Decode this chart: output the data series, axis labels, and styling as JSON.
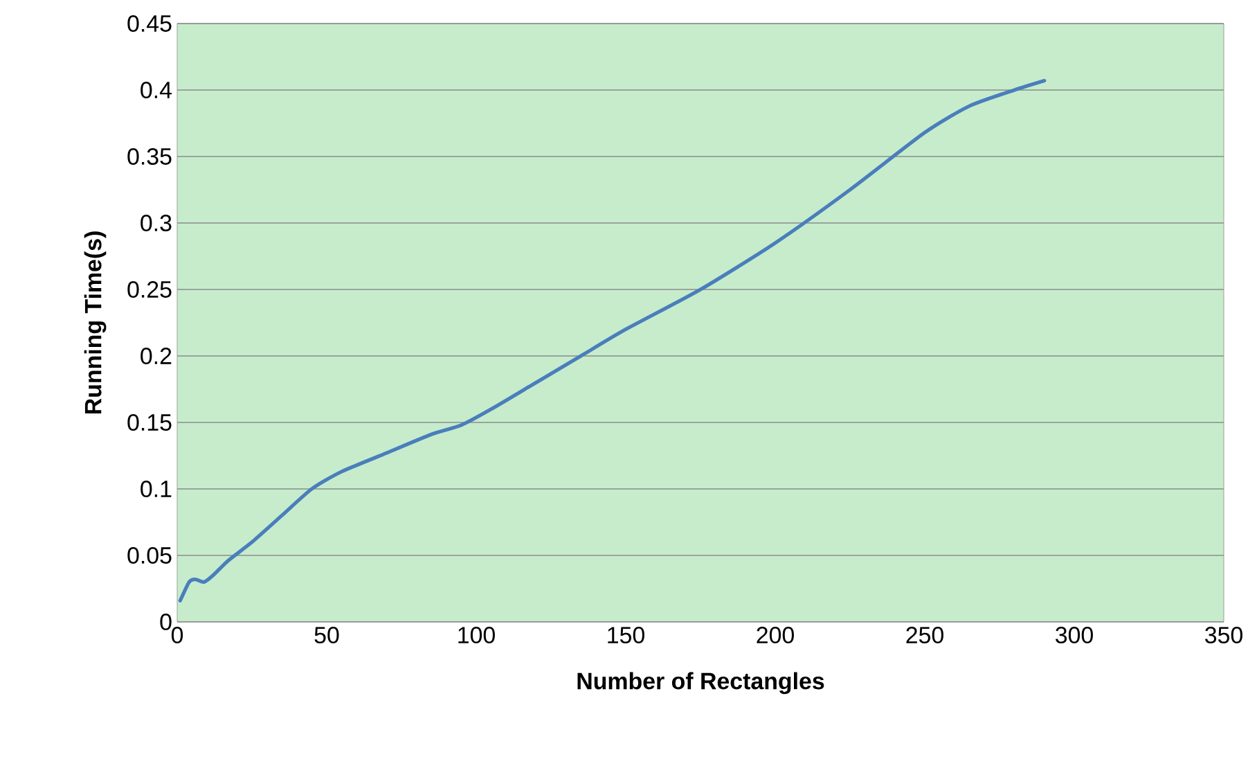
{
  "chart_data": {
    "type": "line",
    "xlabel": "Number of Rectangles",
    "ylabel": "Running Time(s)",
    "x": [
      1,
      4,
      6,
      9,
      12,
      17,
      25,
      35,
      45,
      55,
      70,
      85,
      95,
      105,
      120,
      135,
      150,
      175,
      200,
      225,
      250,
      265,
      280,
      290
    ],
    "series": [
      {
        "color": "#4a7ebb",
        "values": [
          0.016,
          0.03,
          0.032,
          0.03,
          0.035,
          0.046,
          0.06,
          0.08,
          0.1,
          0.113,
          0.127,
          0.141,
          0.148,
          0.16,
          0.18,
          0.2,
          0.22,
          0.25,
          0.285,
          0.325,
          0.368,
          0.388,
          0.4,
          0.407
        ]
      }
    ],
    "xlim": [
      0,
      350
    ],
    "xticks": [
      0,
      50,
      100,
      150,
      200,
      250,
      300,
      350
    ],
    "ylim": [
      0,
      0.45
    ],
    "yticks": [
      0,
      0.05,
      0.1,
      0.15,
      0.2,
      0.25,
      0.3,
      0.35,
      0.4,
      0.45
    ],
    "grid": "y",
    "marker": "none",
    "line_style": "solid"
  }
}
